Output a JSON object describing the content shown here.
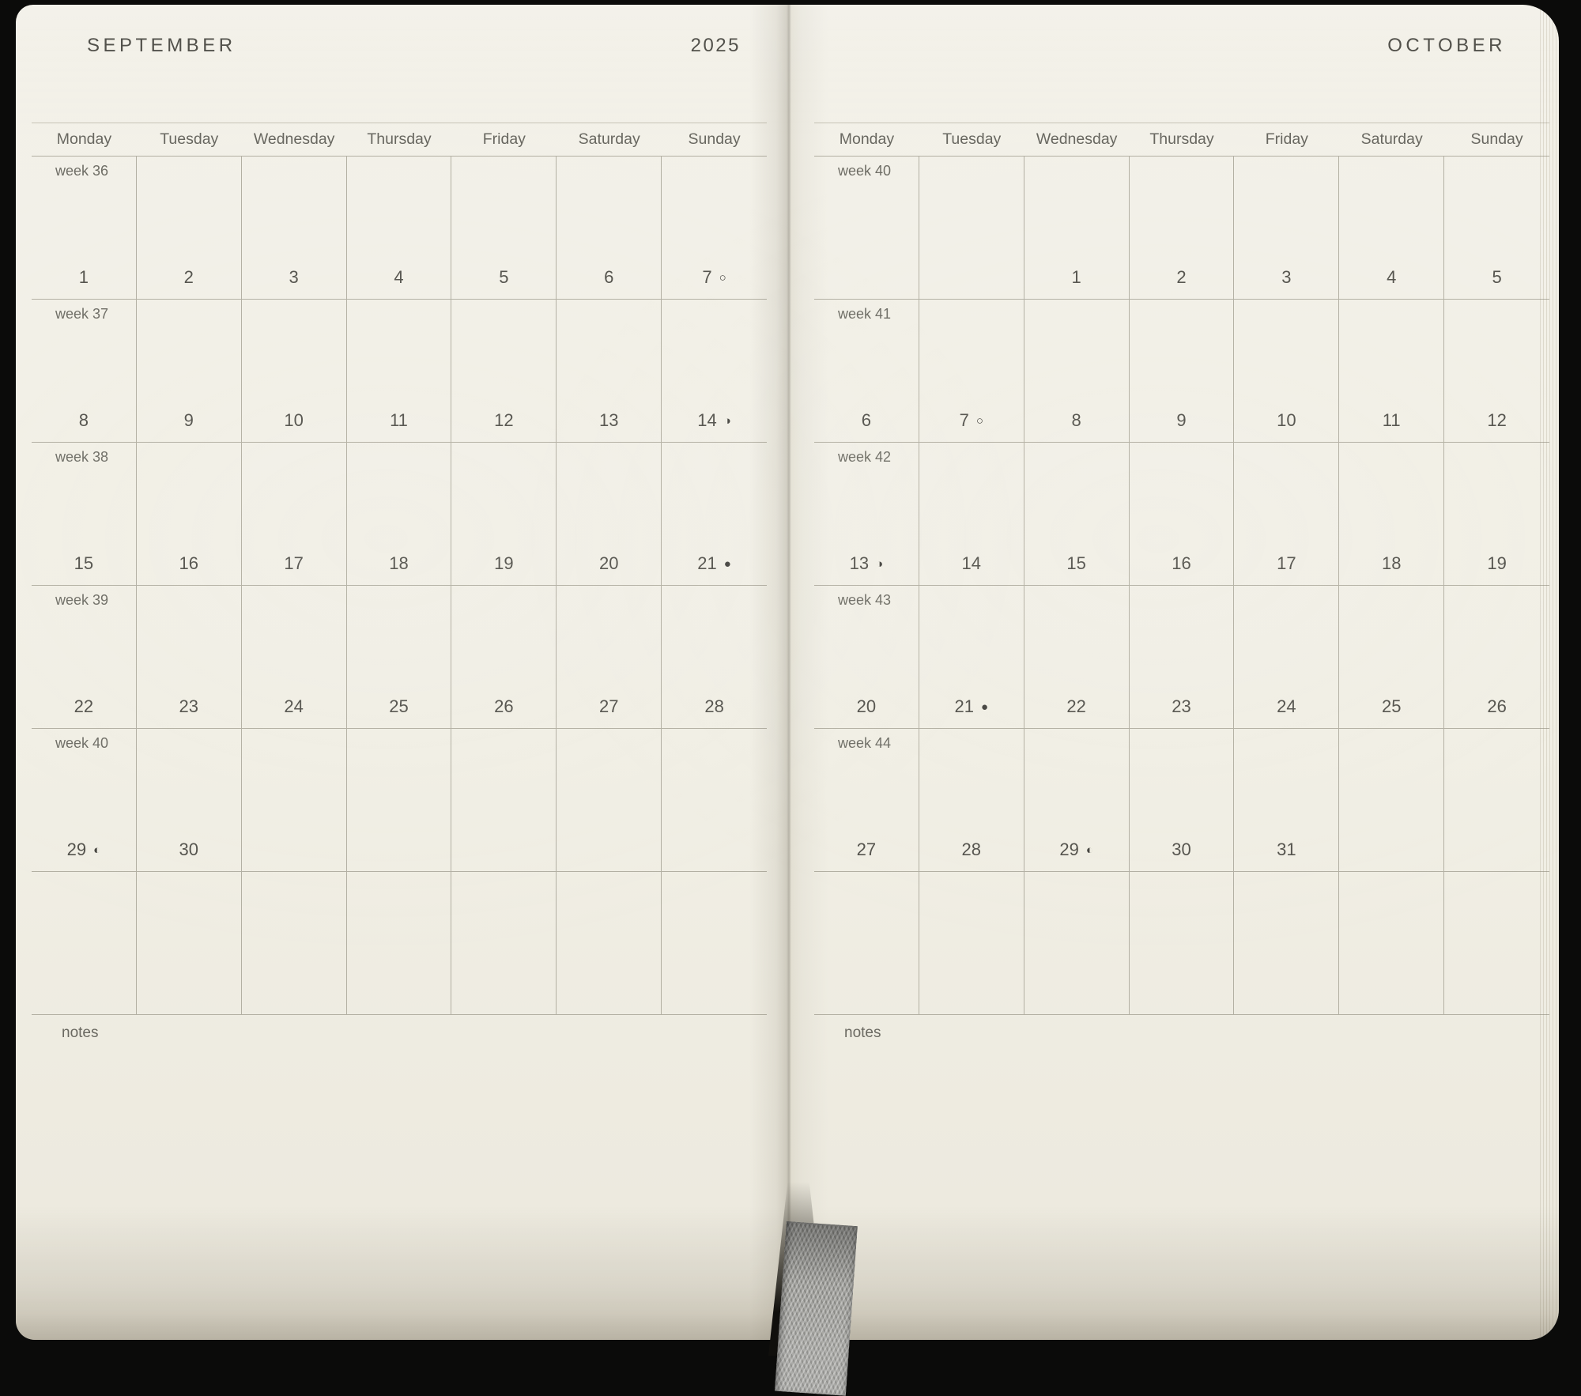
{
  "year": "2025",
  "left_page": {
    "month_title": "SEPTEMBER",
    "weekday_headers": [
      "Monday",
      "Tuesday",
      "Wednesday",
      "Thursday",
      "Friday",
      "Saturday",
      "Sunday"
    ],
    "notes_label": "notes",
    "weeks": [
      {
        "label": "week 36",
        "cells": [
          {
            "day": "1"
          },
          {
            "day": "2"
          },
          {
            "day": "3"
          },
          {
            "day": "4"
          },
          {
            "day": "5"
          },
          {
            "day": "6"
          },
          {
            "day": "7",
            "moon": "○",
            "moon_name": "full-moon"
          }
        ]
      },
      {
        "label": "week 37",
        "cells": [
          {
            "day": "8"
          },
          {
            "day": "9"
          },
          {
            "day": "10"
          },
          {
            "day": "11"
          },
          {
            "day": "12"
          },
          {
            "day": "13"
          },
          {
            "day": "14",
            "moon": "◑",
            "moon_name": "last-quarter-moon"
          }
        ]
      },
      {
        "label": "week 38",
        "cells": [
          {
            "day": "15"
          },
          {
            "day": "16"
          },
          {
            "day": "17"
          },
          {
            "day": "18"
          },
          {
            "day": "19"
          },
          {
            "day": "20"
          },
          {
            "day": "21",
            "moon": "●",
            "moon_name": "new-moon"
          }
        ]
      },
      {
        "label": "week 39",
        "cells": [
          {
            "day": "22"
          },
          {
            "day": "23"
          },
          {
            "day": "24"
          },
          {
            "day": "25"
          },
          {
            "day": "26"
          },
          {
            "day": "27"
          },
          {
            "day": "28"
          }
        ]
      },
      {
        "label": "week 40",
        "cells": [
          {
            "day": "29",
            "moon": "◐",
            "moon_name": "first-quarter-moon"
          },
          {
            "day": "30"
          },
          {},
          {},
          {},
          {},
          {}
        ]
      },
      {
        "label": "",
        "cells": [
          {},
          {},
          {},
          {},
          {},
          {},
          {}
        ]
      }
    ]
  },
  "right_page": {
    "month_title": "OCTOBER",
    "weekday_headers": [
      "Monday",
      "Tuesday",
      "Wednesday",
      "Thursday",
      "Friday",
      "Saturday",
      "Sunday"
    ],
    "notes_label": "notes",
    "weeks": [
      {
        "label": "week 40",
        "cells": [
          {},
          {},
          {
            "day": "1"
          },
          {
            "day": "2"
          },
          {
            "day": "3"
          },
          {
            "day": "4"
          },
          {
            "day": "5"
          }
        ]
      },
      {
        "label": "week 41",
        "cells": [
          {
            "day": "6"
          },
          {
            "day": "7",
            "moon": "○",
            "moon_name": "full-moon"
          },
          {
            "day": "8"
          },
          {
            "day": "9"
          },
          {
            "day": "10"
          },
          {
            "day": "11"
          },
          {
            "day": "12"
          }
        ]
      },
      {
        "label": "week 42",
        "cells": [
          {
            "day": "13",
            "moon": "◑",
            "moon_name": "last-quarter-moon"
          },
          {
            "day": "14"
          },
          {
            "day": "15"
          },
          {
            "day": "16"
          },
          {
            "day": "17"
          },
          {
            "day": "18"
          },
          {
            "day": "19"
          }
        ]
      },
      {
        "label": "week 43",
        "cells": [
          {
            "day": "20"
          },
          {
            "day": "21",
            "moon": "●",
            "moon_name": "new-moon"
          },
          {
            "day": "22"
          },
          {
            "day": "23"
          },
          {
            "day": "24"
          },
          {
            "day": "25"
          },
          {
            "day": "26"
          }
        ]
      },
      {
        "label": "week 44",
        "cells": [
          {
            "day": "27"
          },
          {
            "day": "28"
          },
          {
            "day": "29",
            "moon": "◐",
            "moon_name": "first-quarter-moon"
          },
          {
            "day": "30"
          },
          {
            "day": "31"
          },
          {},
          {}
        ]
      },
      {
        "label": "",
        "cells": [
          {},
          {},
          {},
          {},
          {},
          {},
          {}
        ]
      }
    ]
  }
}
